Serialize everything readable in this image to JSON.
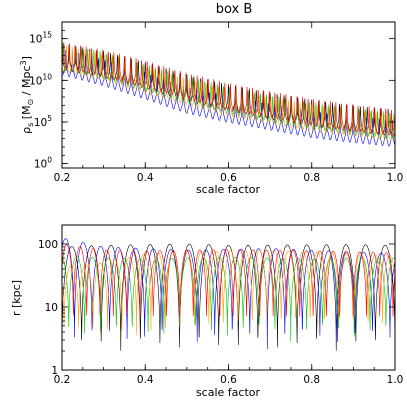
{
  "figure": {
    "title": "box B"
  },
  "chart_data": [
    {
      "type": "line",
      "title": "box B",
      "xlabel": "scale factor",
      "ylabel": "ρ_s [M⊙ / Mpc³]",
      "ylabel_main": "ρ",
      "ylabel_sub": "s",
      "ylabel_unit_open": " [M",
      "ylabel_unit_sub": "⊙",
      "ylabel_unit_mid": " / Mpc",
      "ylabel_unit_sup": "3",
      "ylabel_unit_close": "]",
      "x_scale": "linear",
      "y_scale": "log",
      "xlim": [
        0.2,
        1.0
      ],
      "ylim": [
        0.3,
        1e+17
      ],
      "x_ticks": [
        {
          "value": 0.2,
          "label": "0.2"
        },
        {
          "value": 0.4,
          "label": "0.4"
        },
        {
          "value": 0.6,
          "label": "0.6"
        },
        {
          "value": 0.8,
          "label": "0.8"
        },
        {
          "value": 1.0,
          "label": "1.0"
        }
      ],
      "y_ticks": [
        {
          "value": 1,
          "base": "10",
          "exp": "0"
        },
        {
          "value": 100000,
          "base": "10",
          "exp": "5"
        },
        {
          "value": 10000000000,
          "base": "10",
          "exp": "10"
        },
        {
          "value": 1000000000000000,
          "base": "10",
          "exp": "15"
        }
      ],
      "series": [
        {
          "color": "#000000",
          "values": [
            [
              0.2,
              1600000000000.0
            ],
            [
              0.3,
              200000000000.0
            ],
            [
              0.4,
              10000000000.0
            ],
            [
              0.5,
              300000000.0
            ],
            [
              0.6,
              20000000.0
            ],
            [
              0.7,
              2000000.0
            ],
            [
              0.8,
              300000.0
            ],
            [
              0.9,
              60000.0
            ],
            [
              1.0,
              20000.0
            ]
          ]
        },
        {
          "color": "#0000ff",
          "values": [
            [
              0.2,
              400000000000.0
            ],
            [
              0.3,
              20000000000.0
            ],
            [
              0.4,
              500000000.0
            ],
            [
              0.5,
              10000000.0
            ],
            [
              0.6,
              800000.0
            ],
            [
              0.7,
              100000.0
            ],
            [
              0.8,
              12000.0
            ],
            [
              0.9,
              3000.0
            ],
            [
              1.0,
              1000.0
            ]
          ]
        },
        {
          "color": "#00c800",
          "values": [
            [
              0.2,
              2000000000000.0
            ],
            [
              0.3,
              150000000000.0
            ],
            [
              0.4,
              5000000000.0
            ],
            [
              0.5,
              200000000.0
            ],
            [
              0.6,
              10000000.0
            ],
            [
              0.7,
              1000000.0
            ],
            [
              0.8,
              150000.0
            ],
            [
              0.9,
              30000.0
            ],
            [
              1.0,
              8000.0
            ]
          ]
        },
        {
          "color": "#ffa000",
          "values": [
            [
              0.2,
              1200000000000.0
            ],
            [
              0.3,
              100000000000.0
            ],
            [
              0.4,
              3000000000.0
            ],
            [
              0.5,
              100000000.0
            ],
            [
              0.6,
              5000000.0
            ],
            [
              0.7,
              600000.0
            ],
            [
              0.8,
              80000.0
            ],
            [
              0.9,
              20000.0
            ],
            [
              1.0,
              5000.0
            ]
          ]
        },
        {
          "color": "#ff0000",
          "values": [
            [
              0.2,
              2500000000000.0
            ],
            [
              0.3,
              300000000000.0
            ],
            [
              0.4,
              15000000000.0
            ],
            [
              0.5,
              500000000.0
            ],
            [
              0.6,
              30000000.0
            ],
            [
              0.7,
              3000000.0
            ],
            [
              0.8,
              400000.0
            ],
            [
              0.9,
              80000.0
            ],
            [
              1.0,
              20000.0
            ]
          ]
        }
      ]
    },
    {
      "type": "line",
      "title": "",
      "xlabel": "scale factor",
      "ylabel": "r [kpc]",
      "x_scale": "linear",
      "y_scale": "log",
      "xlim": [
        0.2,
        1.0
      ],
      "ylim": [
        1,
        200
      ],
      "x_ticks": [
        {
          "value": 0.2,
          "label": "0.2"
        },
        {
          "value": 0.4,
          "label": "0.4"
        },
        {
          "value": 0.6,
          "label": "0.6"
        },
        {
          "value": 0.8,
          "label": "0.8"
        },
        {
          "value": 1.0,
          "label": "1.0"
        }
      ],
      "y_ticks": [
        {
          "value": 1,
          "label": "1"
        },
        {
          "value": 10,
          "label": "10"
        },
        {
          "value": 100,
          "label": "100"
        }
      ],
      "series": [
        {
          "color": "#000000",
          "values": [
            [
              0.2,
              90
            ],
            [
              0.3,
              95
            ],
            [
              0.4,
              98
            ],
            [
              0.5,
              100
            ],
            [
              0.6,
              95
            ],
            [
              0.7,
              96
            ],
            [
              0.8,
              97
            ],
            [
              0.9,
              98
            ],
            [
              1.0,
              95
            ]
          ]
        },
        {
          "color": "#0000ff",
          "values": [
            [
              0.2,
              125
            ],
            [
              0.3,
              90
            ],
            [
              0.4,
              85
            ],
            [
              0.5,
              80
            ],
            [
              0.6,
              82
            ],
            [
              0.7,
              85
            ],
            [
              0.8,
              80
            ],
            [
              0.9,
              75
            ],
            [
              1.0,
              70
            ]
          ]
        },
        {
          "color": "#00c800",
          "values": [
            [
              0.2,
              65
            ],
            [
              0.3,
              60
            ],
            [
              0.4,
              58
            ],
            [
              0.5,
              60
            ],
            [
              0.6,
              62
            ],
            [
              0.7,
              60
            ],
            [
              0.8,
              58
            ],
            [
              0.9,
              60
            ],
            [
              1.0,
              60
            ]
          ]
        },
        {
          "color": "#ffa000",
          "values": [
            [
              0.2,
              45
            ],
            [
              0.3,
              50
            ],
            [
              0.4,
              70
            ],
            [
              0.5,
              75
            ],
            [
              0.6,
              78
            ],
            [
              0.7,
              80
            ],
            [
              0.8,
              75
            ],
            [
              0.9,
              70
            ],
            [
              1.0,
              65
            ]
          ]
        },
        {
          "color": "#ff0000",
          "values": [
            [
              0.2,
              100
            ],
            [
              0.3,
              80
            ],
            [
              0.4,
              78
            ],
            [
              0.5,
              80
            ],
            [
              0.6,
              82
            ],
            [
              0.7,
              80
            ],
            [
              0.8,
              78
            ],
            [
              0.9,
              75
            ],
            [
              1.0,
              72
            ]
          ]
        }
      ]
    }
  ]
}
